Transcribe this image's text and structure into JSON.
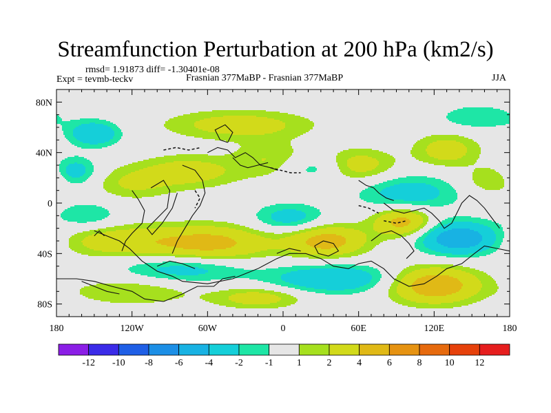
{
  "title": "Streamfunction Perturbation at 200 hPa (km2/s)",
  "stats": "rmsd= 1.91873 diff= -1.30401e-08",
  "left_label": "Expt = tevmb-teckv",
  "center_label": "Frasnian 377MaBP - Frasnian 377MaBP",
  "right_label": "JJA",
  "chart_data": {
    "type": "heatmap",
    "title": "Streamfunction Perturbation at 200 hPa (km2/s)",
    "xlabel": "",
    "ylabel": "",
    "xlim": [
      -180,
      180
    ],
    "ylim": [
      -90,
      90
    ],
    "x_ticks": [
      {
        "value": -180,
        "label": "180"
      },
      {
        "value": -120,
        "label": "120W"
      },
      {
        "value": -60,
        "label": "60W"
      },
      {
        "value": 0,
        "label": "0"
      },
      {
        "value": 60,
        "label": "60E"
      },
      {
        "value": 120,
        "label": "120E"
      },
      {
        "value": 180,
        "label": "180"
      }
    ],
    "y_ticks": [
      {
        "value": 80,
        "label": "80N"
      },
      {
        "value": 40,
        "label": "40N"
      },
      {
        "value": 0,
        "label": "0"
      },
      {
        "value": -40,
        "label": "40S"
      },
      {
        "value": -80,
        "label": "80S"
      }
    ],
    "colorbar": {
      "labels": [
        "-12",
        "-10",
        "-8",
        "-6",
        "-4",
        "-2",
        "-1",
        "1",
        "2",
        "4",
        "6",
        "8",
        "10",
        "12"
      ],
      "colors": [
        "#8b1ee6",
        "#3b2be8",
        "#1f5fe6",
        "#1c8fe6",
        "#18b2e3",
        "#15cfd9",
        "#1ee6a6",
        "#e6e6e6",
        "#a6e01e",
        "#d2da1a",
        "#e0b916",
        "#e69312",
        "#e66a0e",
        "#e6410b",
        "#e61e1e"
      ],
      "neutral_label": "-1 to 1"
    },
    "features": [
      {
        "lon": -150,
        "lat": 55,
        "sigma_lon": 14,
        "sigma_lat": 7,
        "value": -4
      },
      {
        "lon": -165,
        "lat": 25,
        "sigma_lon": 12,
        "sigma_lat": 8,
        "value": -3
      },
      {
        "lon": -35,
        "lat": 62,
        "sigma_lon": 40,
        "sigma_lat": 8,
        "value": 3
      },
      {
        "lon": -10,
        "lat": 35,
        "sigma_lon": 20,
        "sigma_lat": 10,
        "value": 2
      },
      {
        "lon": -75,
        "lat": 25,
        "sigma_lon": 28,
        "sigma_lat": 9,
        "value": 3
      },
      {
        "lon": -120,
        "lat": 15,
        "sigma_lon": 22,
        "sigma_lat": 9,
        "value": 2
      },
      {
        "lon": 60,
        "lat": 30,
        "sigma_lon": 20,
        "sigma_lat": 9,
        "value": 3
      },
      {
        "lon": 25,
        "lat": 28,
        "sigma_lon": 18,
        "sigma_lat": 7,
        "value": -2
      },
      {
        "lon": 100,
        "lat": 8,
        "sigma_lon": 28,
        "sigma_lat": 10,
        "value": -3
      },
      {
        "lon": 130,
        "lat": 42,
        "sigma_lon": 18,
        "sigma_lat": 9,
        "value": 3
      },
      {
        "lon": 155,
        "lat": 68,
        "sigma_lon": 22,
        "sigma_lat": 7,
        "value": -2
      },
      {
        "lon": 165,
        "lat": 18,
        "sigma_lon": 15,
        "sigma_lat": 8,
        "value": 2
      },
      {
        "lon": 95,
        "lat": -15,
        "sigma_lon": 16,
        "sigma_lat": 8,
        "value": 5
      },
      {
        "lon": 140,
        "lat": -28,
        "sigma_lon": 22,
        "sigma_lat": 9,
        "value": -6
      },
      {
        "lon": 35,
        "lat": -30,
        "sigma_lon": 22,
        "sigma_lat": 9,
        "value": 5
      },
      {
        "lon": -60,
        "lat": -32,
        "sigma_lon": 35,
        "sigma_lat": 10,
        "value": 5
      },
      {
        "lon": -135,
        "lat": -30,
        "sigma_lon": 30,
        "sigma_lat": 9,
        "value": 3
      },
      {
        "lon": 5,
        "lat": -12,
        "sigma_lon": 20,
        "sigma_lat": 8,
        "value": -3
      },
      {
        "lon": -155,
        "lat": -10,
        "sigma_lon": 18,
        "sigma_lat": 8,
        "value": -2
      },
      {
        "lon": -80,
        "lat": -52,
        "sigma_lon": 35,
        "sigma_lat": 8,
        "value": -3
      },
      {
        "lon": 40,
        "lat": -60,
        "sigma_lon": 35,
        "sigma_lat": 8,
        "value": -4
      },
      {
        "lon": 120,
        "lat": -65,
        "sigma_lon": 25,
        "sigma_lat": 10,
        "value": 6
      },
      {
        "lon": -120,
        "lat": -70,
        "sigma_lon": 35,
        "sigma_lat": 8,
        "value": 2
      },
      {
        "lon": -20,
        "lat": -75,
        "sigma_lon": 25,
        "sigma_lat": 6,
        "value": 3
      }
    ]
  }
}
